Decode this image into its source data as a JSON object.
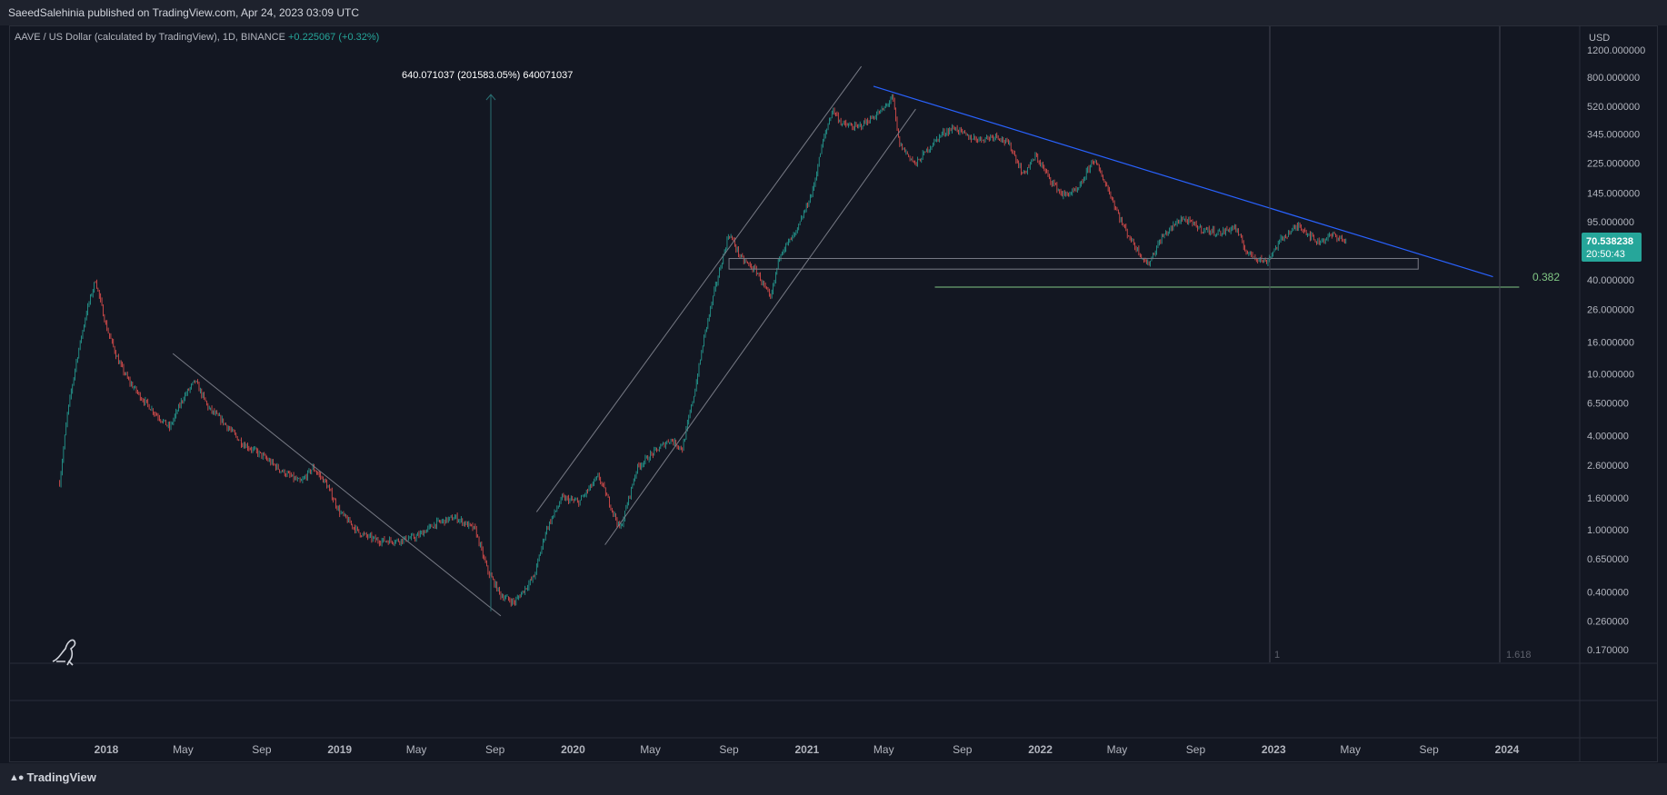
{
  "header": {
    "publish_line": "SaeedSalehinia published on TradingView.com, Apr 24, 2023 03:09 UTC"
  },
  "symbol": {
    "name": "AAVE / US Dollar (calculated by TradingView), 1D, BINANCE",
    "change": "+0.225067 (+0.32%)"
  },
  "footer": {
    "brand": "TradingView"
  },
  "colors": {
    "background": "#131722",
    "up": "#26a69a",
    "down": "#ef5350",
    "trendline": "#2962ff",
    "fib_0382": "#81c784",
    "channel": "#787b86"
  },
  "icons": {
    "logo": "tradingview-logo-icon",
    "mascot": "dinosaur-icon"
  },
  "chart_data": {
    "type": "candlestick",
    "scale": "log",
    "currency": "USD",
    "last_price": "70.538238",
    "countdown": "20:50:43",
    "y_ticks": [
      "1200.000000",
      "800.000000",
      "520.000000",
      "345.000000",
      "225.000000",
      "145.000000",
      "95.000000",
      "40.000000",
      "26.000000",
      "16.000000",
      "10.000000",
      "6.500000",
      "4.000000",
      "2.600000",
      "1.600000",
      "1.000000",
      "0.650000",
      "0.400000",
      "0.260000",
      "0.170000"
    ],
    "x_ticks": [
      "2018",
      "May",
      "Sep",
      "2019",
      "May",
      "Sep",
      "2020",
      "May",
      "Sep",
      "2021",
      "May",
      "Sep",
      "2022",
      "May",
      "Sep",
      "2023",
      "May",
      "Sep",
      "2024"
    ],
    "measure_label": "640.071037 (201583.05%) 640071037",
    "fib_labels": {
      "level_0382": "0.382",
      "level_1": "1",
      "level_1618": "1.618"
    },
    "price_path": [
      [
        "2017-10-20",
        2.0
      ],
      [
        "2017-11-01",
        5.5
      ],
      [
        "2017-11-15",
        12
      ],
      [
        "2017-12-01",
        25
      ],
      [
        "2017-12-15",
        40
      ],
      [
        "2018-01-01",
        20
      ],
      [
        "2018-01-20",
        12
      ],
      [
        "2018-02-05",
        9
      ],
      [
        "2018-02-25",
        7
      ],
      [
        "2018-03-20",
        5.5
      ],
      [
        "2018-04-10",
        4.5
      ],
      [
        "2018-05-01",
        7
      ],
      [
        "2018-05-20",
        9
      ],
      [
        "2018-06-10",
        6
      ],
      [
        "2018-07-01",
        5
      ],
      [
        "2018-08-01",
        3.6
      ],
      [
        "2018-09-01",
        3.0
      ],
      [
        "2018-10-01",
        2.4
      ],
      [
        "2018-11-01",
        2.0
      ],
      [
        "2018-11-20",
        2.5
      ],
      [
        "2018-12-10",
        2.0
      ],
      [
        "2019-01-01",
        1.3
      ],
      [
        "2019-02-01",
        0.95
      ],
      [
        "2019-03-01",
        0.85
      ],
      [
        "2019-04-01",
        0.85
      ],
      [
        "2019-05-01",
        0.9
      ],
      [
        "2019-06-01",
        1.1
      ],
      [
        "2019-07-01",
        1.2
      ],
      [
        "2019-08-01",
        1.0
      ],
      [
        "2019-08-20",
        0.55
      ],
      [
        "2019-09-10",
        0.38
      ],
      [
        "2019-10-01",
        0.34
      ],
      [
        "2019-11-01",
        0.5
      ],
      [
        "2019-11-20",
        1.0
      ],
      [
        "2019-12-15",
        1.6
      ],
      [
        "2020-01-10",
        1.5
      ],
      [
        "2020-02-10",
        2.2
      ],
      [
        "2020-03-15",
        1.0
      ],
      [
        "2020-04-10",
        2.5
      ],
      [
        "2020-05-01",
        3.0
      ],
      [
        "2020-06-01",
        3.8
      ],
      [
        "2020-06-20",
        3.3
      ],
      [
        "2020-07-10",
        8
      ],
      [
        "2020-07-25",
        18
      ],
      [
        "2020-08-10",
        35
      ],
      [
        "2020-09-01",
        80
      ],
      [
        "2020-09-20",
        55
      ],
      [
        "2020-10-15",
        45
      ],
      [
        "2020-11-05",
        30
      ],
      [
        "2020-11-20",
        60
      ],
      [
        "2020-12-15",
        80
      ],
      [
        "2021-01-10",
        150
      ],
      [
        "2021-01-25",
        300
      ],
      [
        "2021-02-10",
        500
      ],
      [
        "2021-02-25",
        400
      ],
      [
        "2021-03-20",
        380
      ],
      [
        "2021-04-10",
        430
      ],
      [
        "2021-05-01",
        500
      ],
      [
        "2021-05-15",
        600
      ],
      [
        "2021-05-25",
        300
      ],
      [
        "2021-06-20",
        220
      ],
      [
        "2021-07-10",
        280
      ],
      [
        "2021-08-01",
        350
      ],
      [
        "2021-08-20",
        380
      ],
      [
        "2021-09-10",
        330
      ],
      [
        "2021-10-01",
        320
      ],
      [
        "2021-10-25",
        340
      ],
      [
        "2021-11-15",
        290
      ],
      [
        "2021-12-05",
        190
      ],
      [
        "2021-12-25",
        250
      ],
      [
        "2022-01-15",
        180
      ],
      [
        "2022-02-05",
        140
      ],
      [
        "2022-03-01",
        150
      ],
      [
        "2022-03-25",
        240
      ],
      [
        "2022-04-15",
        160
      ],
      [
        "2022-05-10",
        90
      ],
      [
        "2022-05-25",
        70
      ],
      [
        "2022-06-18",
        50
      ],
      [
        "2022-07-10",
        75
      ],
      [
        "2022-08-10",
        100
      ],
      [
        "2022-09-10",
        85
      ],
      [
        "2022-10-10",
        80
      ],
      [
        "2022-11-01",
        88
      ],
      [
        "2022-11-20",
        60
      ],
      [
        "2022-12-20",
        52
      ],
      [
        "2023-01-15",
        75
      ],
      [
        "2023-02-10",
        90
      ],
      [
        "2023-03-10",
        70
      ],
      [
        "2023-04-05",
        78
      ],
      [
        "2023-04-24",
        70.5
      ]
    ]
  }
}
